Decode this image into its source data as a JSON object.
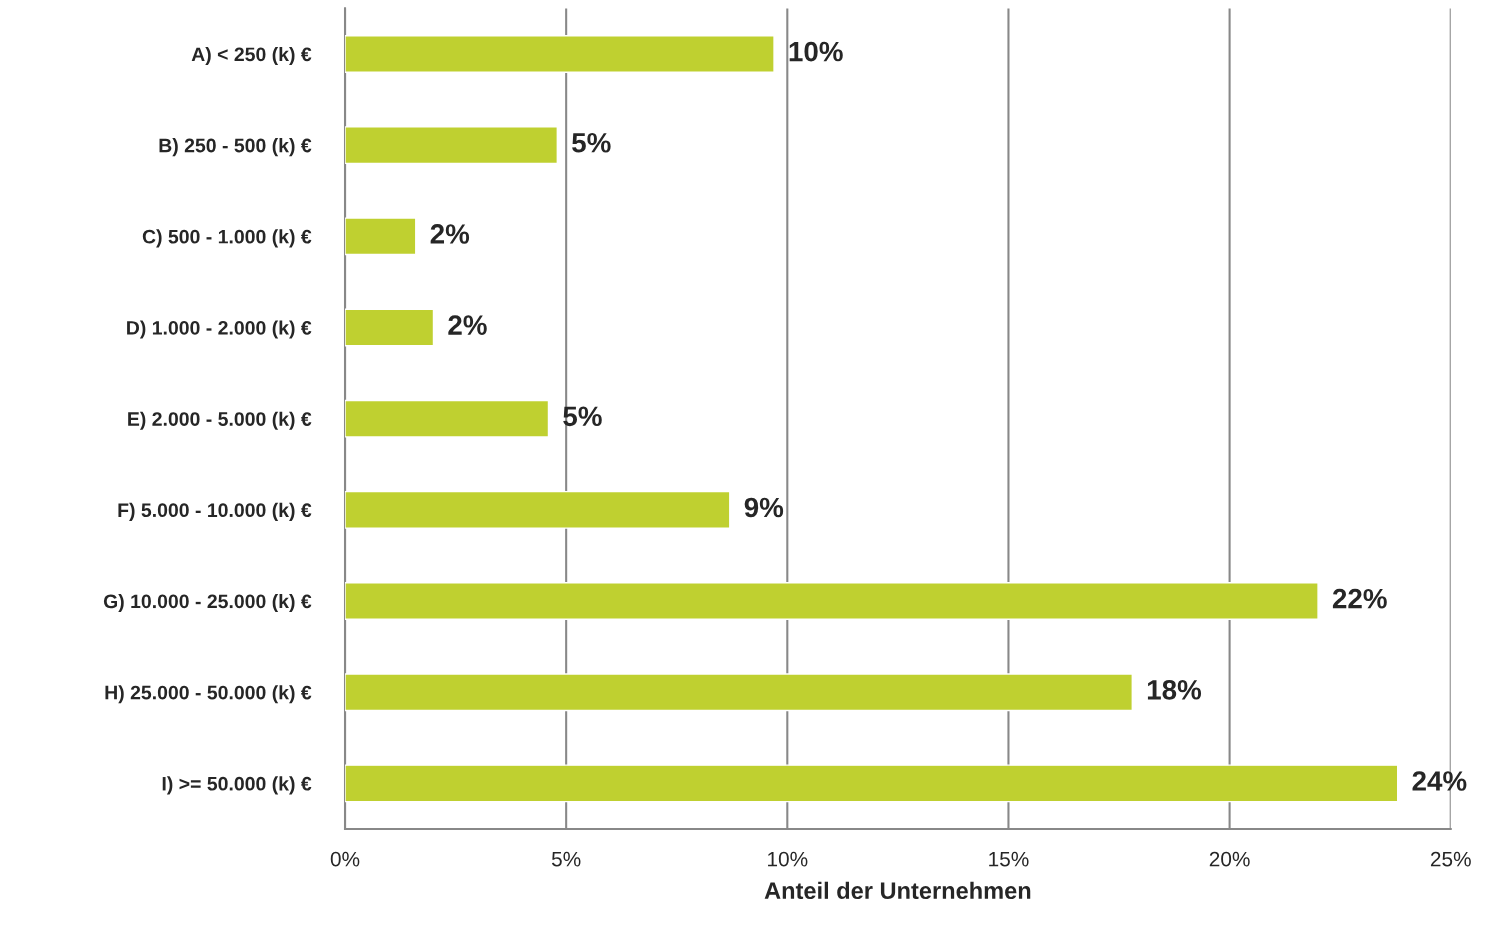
{
  "chart_data": {
    "type": "bar",
    "orientation": "horizontal",
    "xlabel": "Anteil der Unternehmen",
    "categories": [
      "A) < 250 (k) €",
      "B) 250 - 500 (k) €",
      "C) 500 - 1.000 (k) €",
      "D) 1.000 - 2.000 (k) €",
      "E) 2.000 - 5.000 (k) €",
      "F) 5.000 - 10.000 (k) €",
      "G) 10.000 - 25.000 (k) €",
      "H) 25.000 - 50.000 (k) €",
      "I) >= 50.000 (k) €"
    ],
    "values": [
      9.7,
      4.8,
      1.6,
      2.0,
      4.6,
      8.7,
      22.0,
      17.8,
      23.8
    ],
    "value_labels": [
      "10%",
      "5%",
      "2%",
      "2%",
      "5%",
      "9%",
      "22%",
      "18%",
      "24%"
    ],
    "color": "#bfd030",
    "xlim": [
      0,
      25
    ],
    "xticks": [
      {
        "value": 0,
        "label": "0%"
      },
      {
        "value": 5,
        "label": "5%"
      },
      {
        "value": 10,
        "label": "10%"
      },
      {
        "value": 15,
        "label": "15%"
      },
      {
        "value": 20,
        "label": "20%"
      },
      {
        "value": 25,
        "label": "25%"
      }
    ],
    "grid": "x"
  }
}
